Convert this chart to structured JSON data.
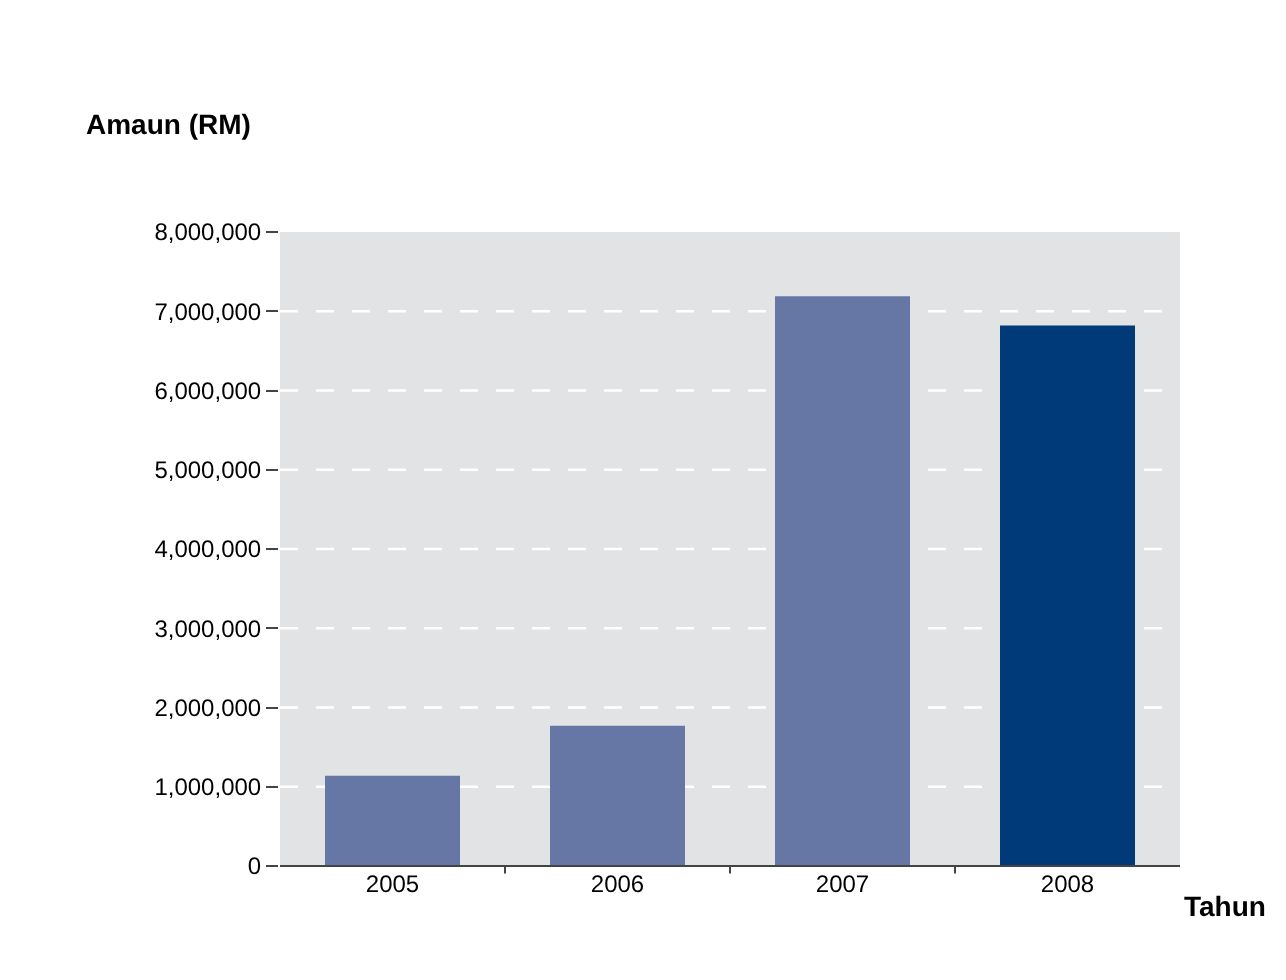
{
  "chart_data": {
    "type": "bar",
    "ylabel": "Amaun (RM)",
    "xlabel": "Tahun",
    "categories": [
      "2005",
      "2006",
      "2007",
      "2008"
    ],
    "values": [
      1140000,
      1770000,
      7190000,
      6820000
    ],
    "colors": [
      "#6677a6",
      "#6677a6",
      "#6677a6",
      "#003a78"
    ],
    "ylim": [
      0,
      8000000
    ],
    "yticks": [
      {
        "value": 0,
        "label": "0"
      },
      {
        "value": 1000000,
        "label": "1,000,000"
      },
      {
        "value": 2000000,
        "label": "2,000,000"
      },
      {
        "value": 3000000,
        "label": "3,000,000"
      },
      {
        "value": 4000000,
        "label": "4,000,000"
      },
      {
        "value": 5000000,
        "label": "5,000,000"
      },
      {
        "value": 6000000,
        "label": "6,000,000"
      },
      {
        "value": 7000000,
        "label": "7,000,000"
      },
      {
        "value": 8000000,
        "label": "8,000,000"
      }
    ],
    "grid": "y",
    "legend": false
  }
}
